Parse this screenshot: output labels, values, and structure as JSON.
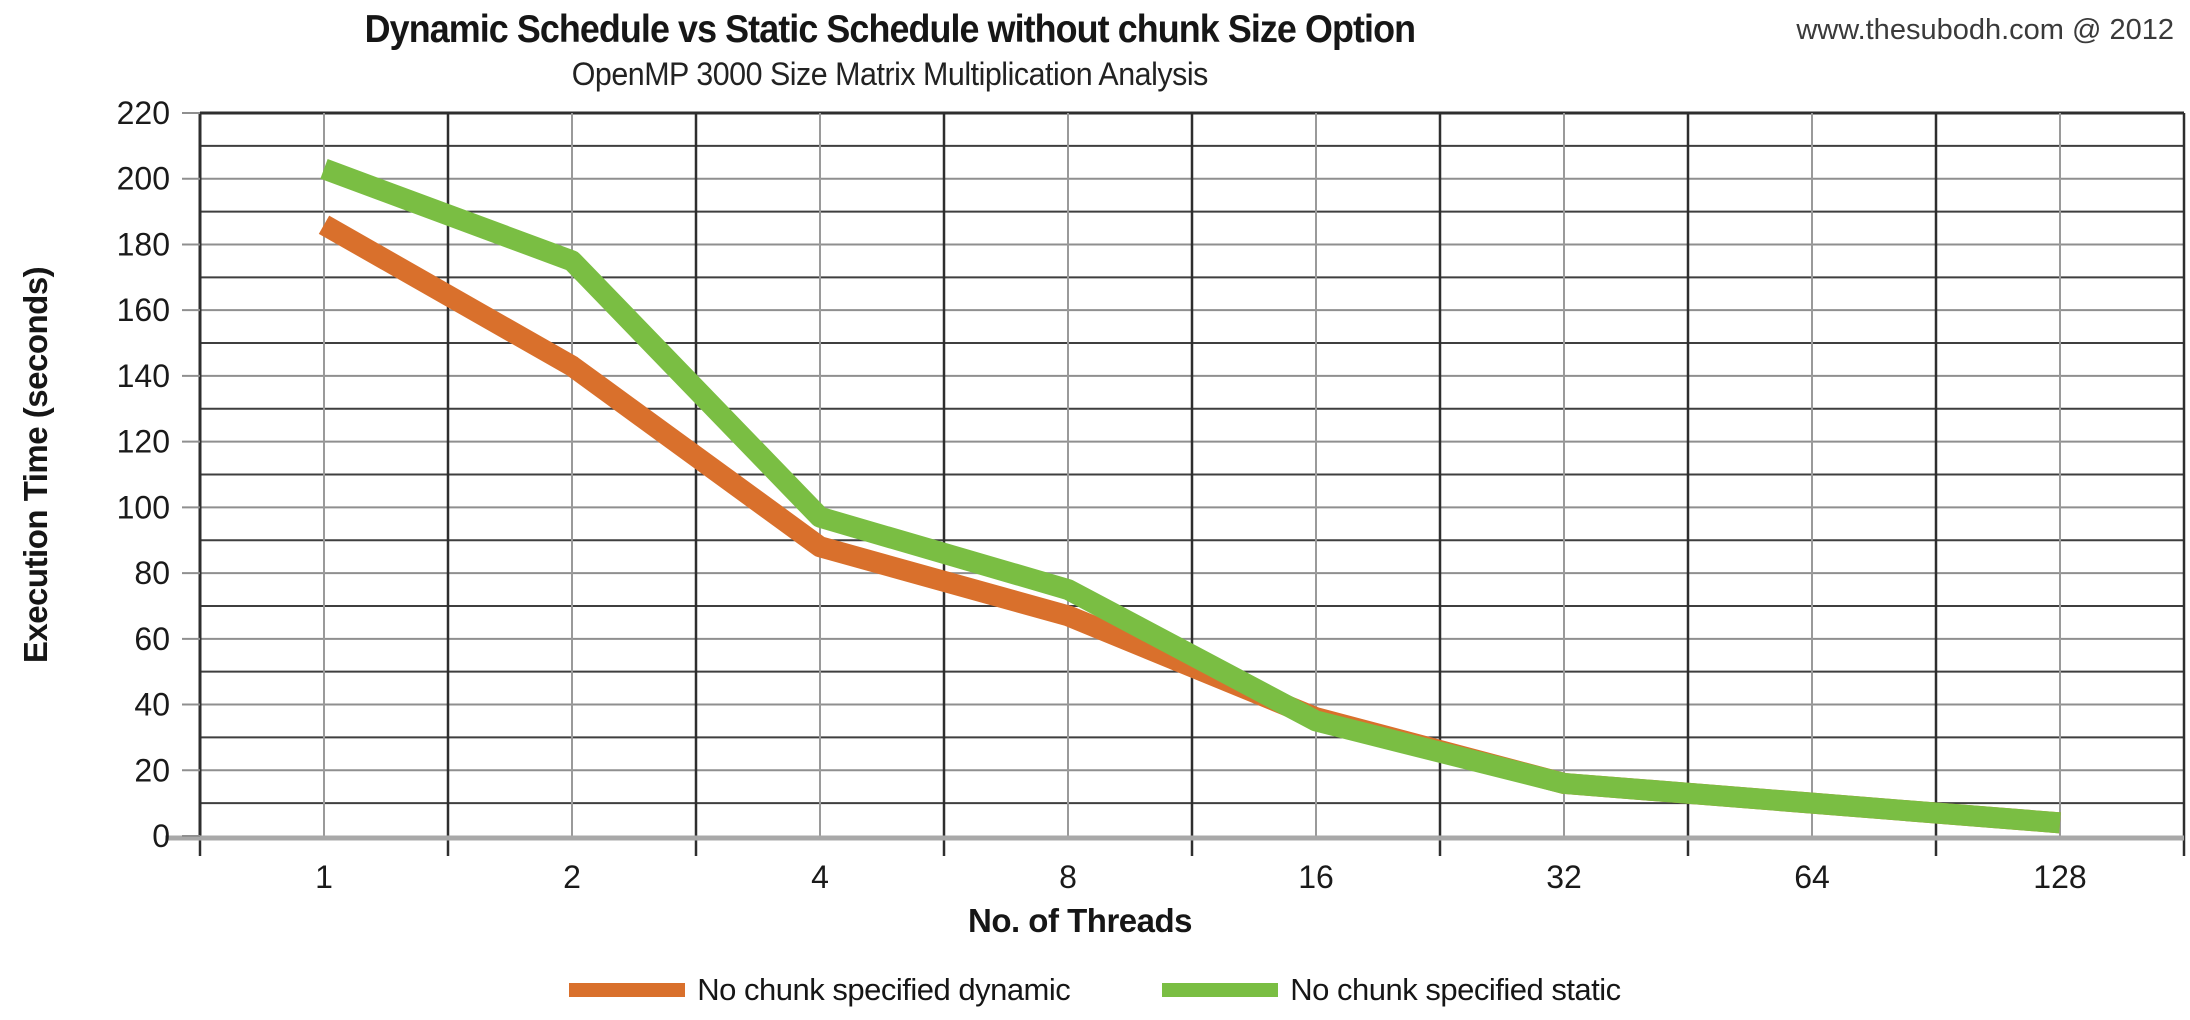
{
  "chart_data": {
    "type": "line",
    "title": "Dynamic Schedule vs Static Schedule without chunk Size Option",
    "subtitle": "OpenMP 3000 Size Matrix Multiplication Analysis",
    "watermark": "www.thesubodh.com @ 2012",
    "xlabel": "No. of Threads",
    "ylabel": "Execution Time (seconds)",
    "categories": [
      "1",
      "2",
      "4",
      "8",
      "16",
      "32",
      "64",
      "128"
    ],
    "series": [
      {
        "name": "No chunk specified dynamic",
        "color": "#D9702C",
        "values": [
          186,
          143,
          88,
          67,
          36,
          16,
          10,
          4
        ]
      },
      {
        "name": "No chunk specified static",
        "color": "#7ABE43",
        "values": [
          203,
          175,
          97,
          75,
          35,
          16,
          10,
          4
        ]
      }
    ],
    "ylim": [
      0,
      220
    ],
    "y_tick_step": 20,
    "y_minor_step": 10,
    "grid": true,
    "legend_position": "bottom",
    "note_series_overlap": "dynamic line hidden behind static line from 16 threads onward"
  }
}
